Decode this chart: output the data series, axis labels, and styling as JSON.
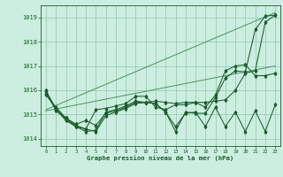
{
  "title": "Graphe pression niveau de la mer (hPa)",
  "ylim": [
    1013.7,
    1019.5
  ],
  "xlim": [
    -0.5,
    23.5
  ],
  "yticks": [
    1014,
    1015,
    1016,
    1017,
    1018,
    1019
  ],
  "background_color": "#cceee0",
  "grid_color": "#99ccb8",
  "line_color": "#1a5c2a",
  "line_color_light": "#3a8a50",
  "series1": [
    1015.8,
    1015.3,
    1014.85,
    1014.6,
    1014.75,
    1014.55,
    1015.05,
    1015.15,
    1015.3,
    1015.5,
    1015.5,
    1015.55,
    1015.5,
    1015.45,
    1015.5,
    1015.5,
    1015.5,
    1015.55,
    1015.6,
    1016.0,
    1016.7,
    1016.8,
    1018.8,
    1019.1
  ],
  "series2": [
    1015.95,
    1015.25,
    1014.8,
    1014.5,
    1014.4,
    1014.3,
    1014.95,
    1015.1,
    1015.25,
    1015.45,
    1015.5,
    1015.45,
    1015.1,
    1014.3,
    1015.1,
    1015.05,
    1015.05,
    1015.7,
    1016.5,
    1016.8,
    1016.75,
    1018.5,
    1019.05,
    1019.1
  ],
  "series3": [
    1015.85,
    1015.2,
    1014.75,
    1014.5,
    1014.3,
    1014.35,
    1015.1,
    1015.2,
    1015.35,
    1015.55,
    1015.5,
    1015.45,
    1015.1,
    1014.5,
    1015.05,
    1015.1,
    1014.5,
    1015.3,
    1014.5,
    1015.1,
    1014.3,
    1015.15,
    1014.3,
    1015.4
  ],
  "series4": [
    1016.0,
    1015.15,
    1014.85,
    1014.55,
    1014.4,
    1015.2,
    1015.25,
    1015.35,
    1015.45,
    1015.75,
    1015.75,
    1015.3,
    1015.2,
    1015.4,
    1015.4,
    1015.5,
    1015.3,
    1015.8,
    1016.8,
    1017.0,
    1017.05,
    1016.6,
    1016.6,
    1016.7
  ],
  "trend1_x": [
    0,
    23
  ],
  "trend1_y": [
    1015.2,
    1019.2
  ],
  "trend2_x": [
    0,
    23
  ],
  "trend2_y": [
    1015.15,
    1017.0
  ]
}
